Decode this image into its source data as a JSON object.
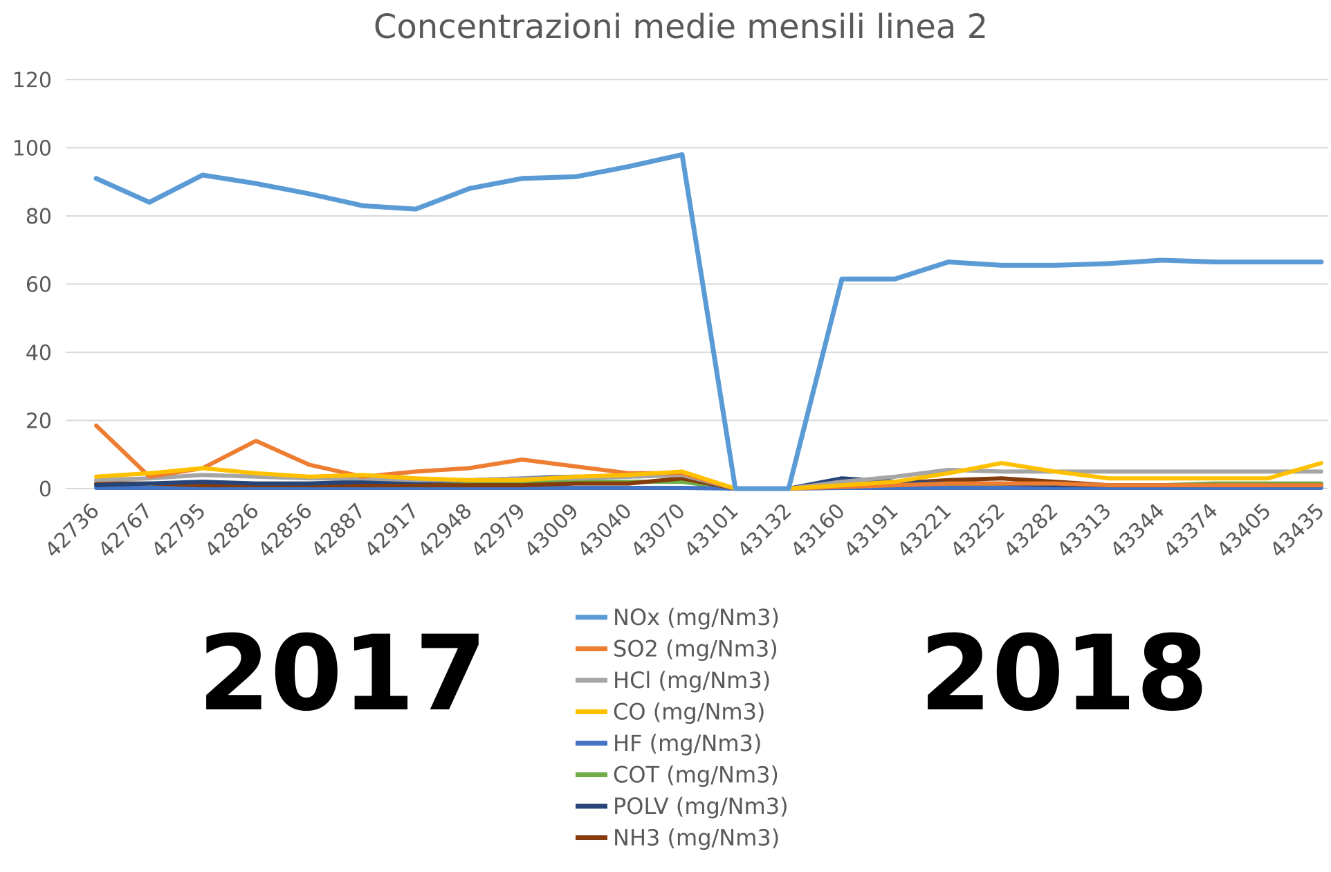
{
  "chart_data": {
    "type": "line",
    "title": "Concentrazioni medie mensili linea 2",
    "xlabel": "",
    "ylabel": "",
    "ylim": [
      0,
      120
    ],
    "yticks": [
      0,
      20,
      40,
      60,
      80,
      100,
      120
    ],
    "grid": true,
    "legend_position": "bottom",
    "categories": [
      "42736",
      "42767",
      "42795",
      "42826",
      "42856",
      "42887",
      "42917",
      "42948",
      "42979",
      "43009",
      "43040",
      "43070",
      "43101",
      "43132",
      "43160",
      "43191",
      "43221",
      "43252",
      "43282",
      "43313",
      "43344",
      "43374",
      "43405",
      "43435"
    ],
    "series": [
      {
        "name": "NOx (mg/Nm3)",
        "color": "#5b9bd5",
        "values": [
          91,
          84,
          92,
          89.5,
          86.5,
          83,
          82,
          88,
          91,
          91.5,
          94.5,
          98,
          0,
          0,
          61.5,
          61.5,
          66.5,
          65.5,
          65.5,
          66,
          67,
          66.5,
          66.5,
          66.5
        ]
      },
      {
        "name": "SO2 (mg/Nm3)",
        "color": "#ed7d31",
        "values": [
          18.5,
          3.5,
          6,
          14,
          7,
          3.5,
          5,
          6,
          8.5,
          6.5,
          4.5,
          4.5,
          0,
          0,
          0.5,
          1,
          1.5,
          1.5,
          1.5,
          1,
          1,
          1,
          1,
          1
        ]
      },
      {
        "name": "HCl (mg/Nm3)",
        "color": "#a5a5a5",
        "values": [
          2.5,
          3,
          4,
          3.5,
          3,
          3,
          2.5,
          2.5,
          3,
          3,
          3.5,
          4,
          0,
          0,
          2,
          3.5,
          5.5,
          5,
          5,
          5,
          5,
          5,
          5,
          5
        ]
      },
      {
        "name": "CO (mg/Nm3)",
        "color": "#ffc000",
        "values": [
          3.5,
          4.5,
          6,
          4.5,
          3.5,
          4,
          3,
          2.5,
          2.5,
          3.5,
          4,
          5,
          0,
          0,
          1,
          2,
          4.5,
          7.5,
          5,
          3,
          3,
          3,
          3,
          7.5
        ]
      },
      {
        "name": "HF (mg/Nm3)",
        "color": "#4472c4",
        "values": [
          0.2,
          0.2,
          0.2,
          0.2,
          0.2,
          0.2,
          0.2,
          0.2,
          0.2,
          0.2,
          0.2,
          0.2,
          0,
          0,
          0.2,
          0.2,
          0.2,
          0.2,
          0.2,
          0.2,
          0.2,
          0.2,
          0.2,
          0.2
        ]
      },
      {
        "name": "COT (mg/Nm3)",
        "color": "#70ad47",
        "values": [
          1,
          1.5,
          1,
          1,
          1,
          1,
          1,
          1.5,
          1.5,
          2,
          2,
          2,
          0,
          0,
          1,
          1,
          1,
          1,
          1,
          1,
          1,
          1.5,
          1.5,
          1.5
        ]
      },
      {
        "name": "POLV (mg/Nm3)",
        "color": "#264478",
        "values": [
          1,
          1.5,
          2,
          1.5,
          1.5,
          2,
          2,
          2.5,
          3,
          3.5,
          3.5,
          4,
          0,
          0,
          3,
          2,
          1.5,
          1.5,
          1,
          1,
          1,
          1,
          1,
          1
        ]
      },
      {
        "name": "NH3 (mg/Nm3)",
        "color": "#843c0c",
        "values": [
          1.5,
          1.5,
          1,
          1,
          1,
          1,
          1,
          1,
          1,
          1.5,
          1.5,
          3,
          0,
          0,
          0.5,
          1.5,
          2.5,
          3,
          2,
          1,
          1,
          1,
          1,
          1
        ]
      }
    ],
    "annotations": [
      "2017",
      "2018"
    ]
  }
}
